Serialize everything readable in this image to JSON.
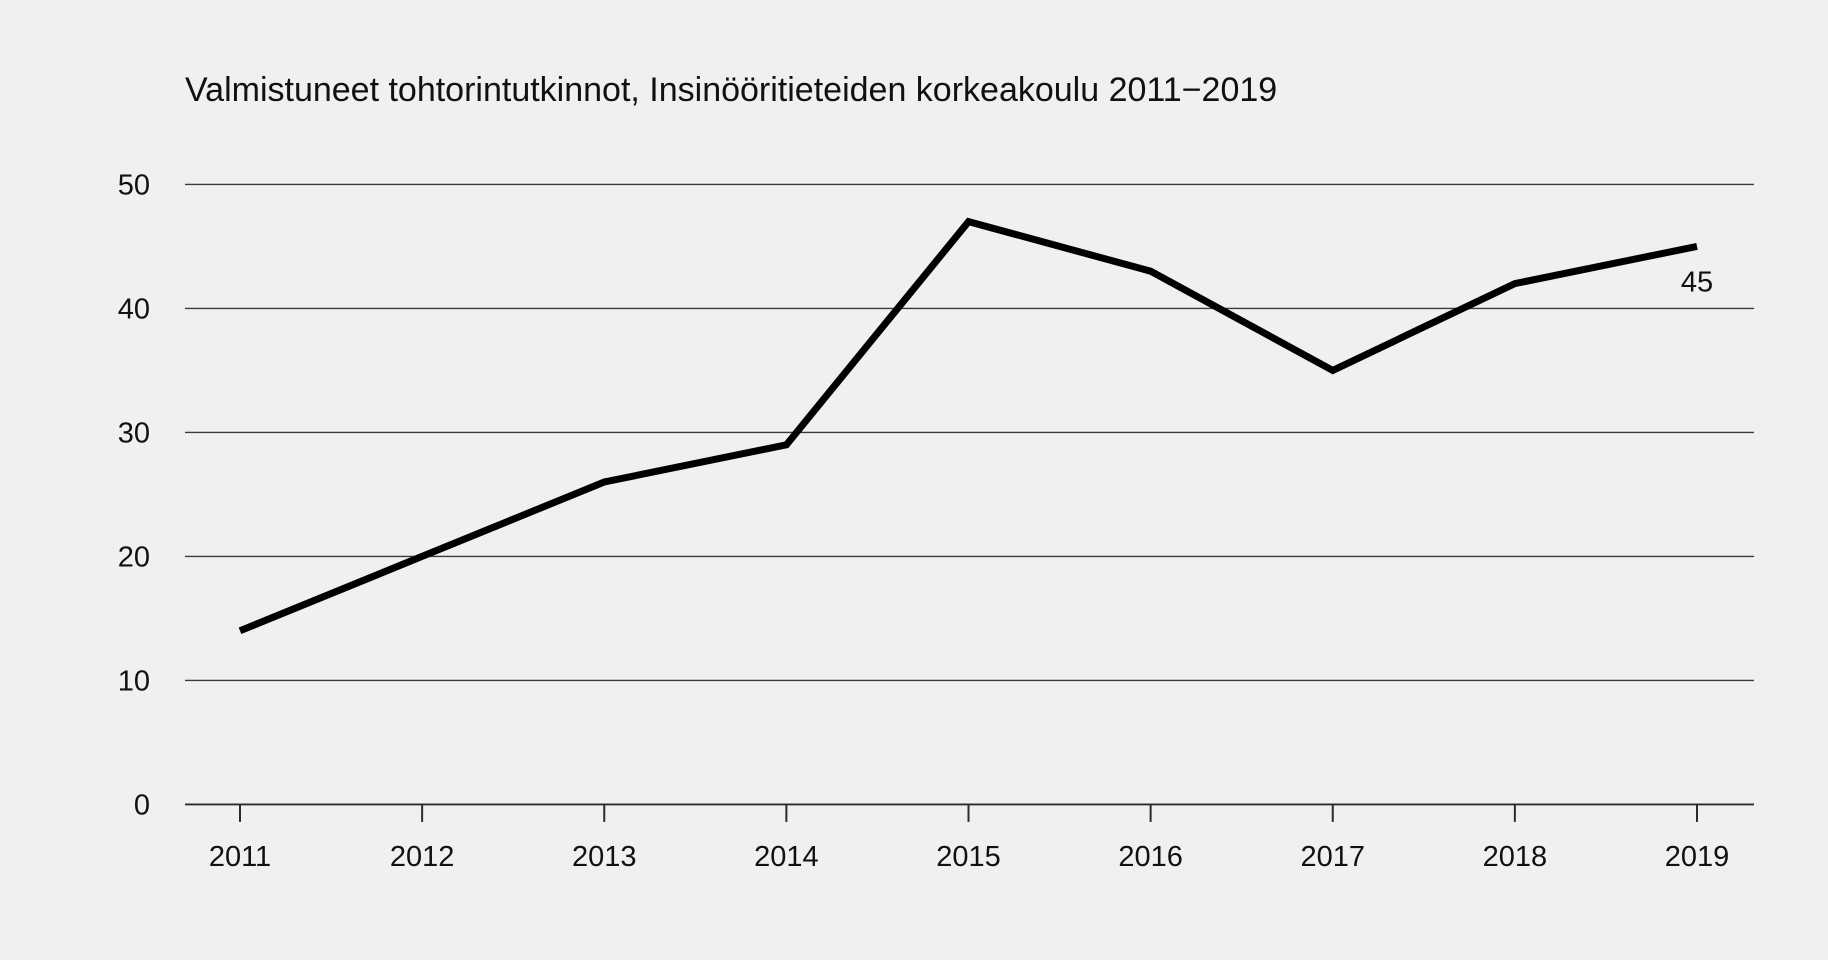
{
  "chart_data": {
    "type": "line",
    "title": "Valmistuneet tohtorintutkinnot, Insinööritieteiden korkeakoulu 2011−2019",
    "x": [
      "2011",
      "2012",
      "2013",
      "2014",
      "2015",
      "2016",
      "2017",
      "2018",
      "2019"
    ],
    "series": [
      {
        "name": "Valmistuneet tohtorintutkinnot",
        "values": [
          14,
          20,
          26,
          29,
          47,
          43,
          35,
          42,
          45
        ]
      }
    ],
    "xlabel": "",
    "ylabel": "",
    "ylim": [
      0,
      50
    ],
    "yticks": [
      0,
      10,
      20,
      30,
      40,
      50
    ],
    "ytick_labels": [
      "0",
      "10",
      "20",
      "30",
      "40",
      "50"
    ],
    "grid": "horizontal",
    "legend_position": "none",
    "annotations": [
      {
        "text": "45",
        "x": "2019",
        "y": 45,
        "placement": "below-last-point"
      }
    ],
    "colors": {
      "background": "#f0f0f0",
      "line": "#000000",
      "gridline": "#3a3a3a",
      "axis": "#2b2b2b",
      "text": "#111111"
    }
  }
}
